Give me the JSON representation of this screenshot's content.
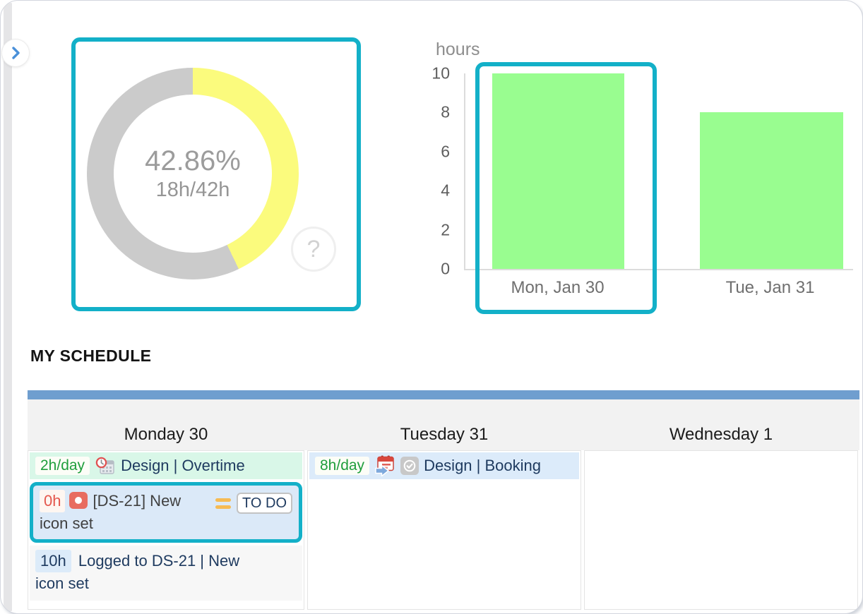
{
  "capacity": {
    "help_label": "?"
  },
  "chart_data": [
    {
      "type": "pie",
      "donut": true,
      "center_text": [
        "42.86%",
        "18h/42h"
      ],
      "slices": [
        {
          "name": "used",
          "value": 42.86,
          "color": "#fbfb7d"
        },
        {
          "name": "remaining",
          "value": 57.14,
          "color": "#cbcbcb"
        }
      ]
    },
    {
      "type": "bar",
      "ylabel": "hours",
      "categories": [
        "Mon, Jan 30",
        "Tue, Jan 31"
      ],
      "values": [
        10,
        8
      ],
      "ylim": [
        0,
        10
      ],
      "yticks": [
        0,
        2,
        4,
        6,
        8,
        10
      ],
      "bar_color": "#99fd90",
      "grid": false,
      "legend": false
    }
  ],
  "icons": {
    "expand_sidebar": "chevron-right",
    "overtime": "clock-calendar",
    "task_status": "red-record-square",
    "priority": "orange-equals",
    "booking": "calendar-forward-arrow",
    "approved": "check-circle",
    "help": "question-mark"
  },
  "colors": {
    "highlight": "#13b0c8",
    "schedule_topbar": "#6f9ecf",
    "overtime_bg": "#d9f7e8",
    "booking_bg": "#dcebfa",
    "green_text": "#1f9e3c",
    "red_text": "#e4574d",
    "navy_text": "#1e3a5f"
  },
  "schedule": {
    "title": "MY SCHEDULE",
    "days": [
      {
        "label": "Monday 30",
        "items": [
          {
            "badge": "2h/day",
            "text": "Design | Overtime"
          },
          {
            "badge": "0h",
            "text": "[DS-21] New icon set",
            "status": "TO DO"
          },
          {
            "badge": "10h",
            "text": "Logged to DS-21 | New icon set"
          }
        ]
      },
      {
        "label": "Tuesday 31",
        "items": [
          {
            "badge": "8h/day",
            "text": "Design | Booking"
          }
        ]
      },
      {
        "label": "Wednesday 1",
        "items": []
      }
    ]
  }
}
